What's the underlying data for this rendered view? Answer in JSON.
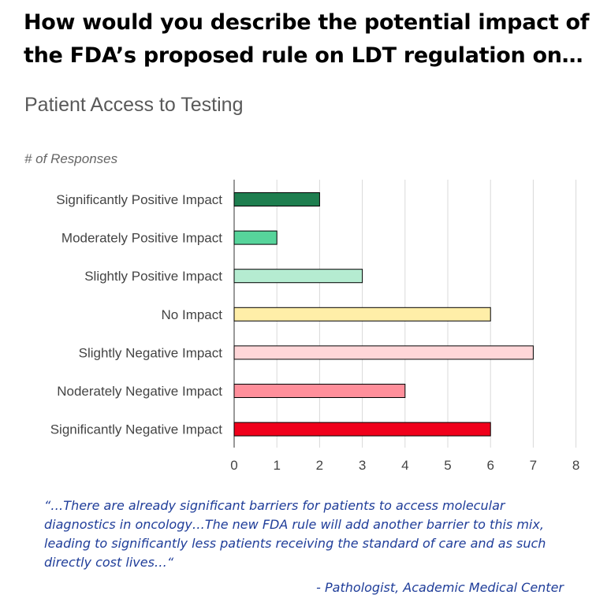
{
  "headline": "How would you describe the potential impact of the FDA’s proposed rule on LDT regulation on…",
  "chart_data": {
    "type": "bar",
    "orientation": "horizontal",
    "title": "Patient Access to Testing",
    "xlabel": "# of Responses",
    "categories": [
      "Significantly Positive Impact",
      "Moderately Positive Impact",
      "Slightly Positive Impact",
      "No Impact",
      "Slightly Negative Impact",
      "Noderately Negative Impact",
      "Significantly Negative Impact"
    ],
    "values": [
      2,
      1,
      3,
      6,
      7,
      4,
      6
    ],
    "colors": [
      "#1e7e4f",
      "#57d49b",
      "#b5ecd1",
      "#ffeea8",
      "#ffd6d8",
      "#ff8f9b",
      "#f0001b"
    ],
    "xlim": [
      0,
      8
    ],
    "ticks": [
      0,
      1,
      2,
      3,
      4,
      5,
      6,
      7,
      8
    ],
    "grid": true,
    "legend": "none"
  },
  "quote": {
    "text": "“…There are already significant barriers for patients to access molecular diagnostics in oncology…The new FDA rule will add another barrier to this mix, leading to significantly less patients receiving the standard of care and as such directly cost lives…“",
    "attribution": "- Pathologist, Academic Medical Center"
  }
}
